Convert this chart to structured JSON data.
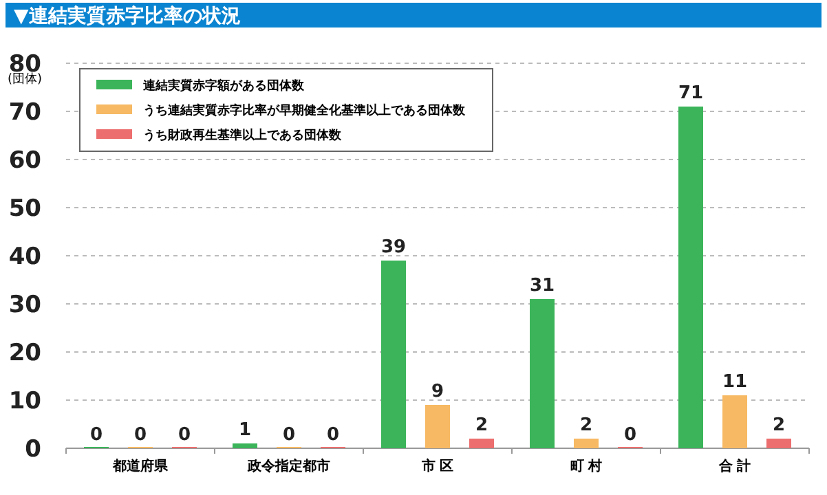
{
  "chart_data": {
    "type": "bar",
    "title": "▼連結実質赤字比率の状況",
    "ylabel": "(団体)",
    "categories": [
      "都道府県",
      "政令指定都市",
      "市 区",
      "町 村",
      "合 計"
    ],
    "series": [
      {
        "name": "連結実質赤字額がある団体数",
        "color": "#3cb55a",
        "values": [
          0,
          1,
          39,
          31,
          71
        ]
      },
      {
        "name": "うち連結実質赤字比率が早期健全化基準以上である団体数",
        "color": "#f7b963",
        "values": [
          0,
          0,
          9,
          2,
          11
        ]
      },
      {
        "name": "うち財政再生基準以上である団体数",
        "color": "#ec6e6e",
        "values": [
          0,
          0,
          2,
          0,
          2
        ]
      }
    ],
    "ylim": [
      0,
      80
    ],
    "yticks": [
      0,
      10,
      20,
      30,
      40,
      50,
      60,
      70,
      80
    ],
    "grid": "y",
    "legend": "top left",
    "data_labels": true
  }
}
